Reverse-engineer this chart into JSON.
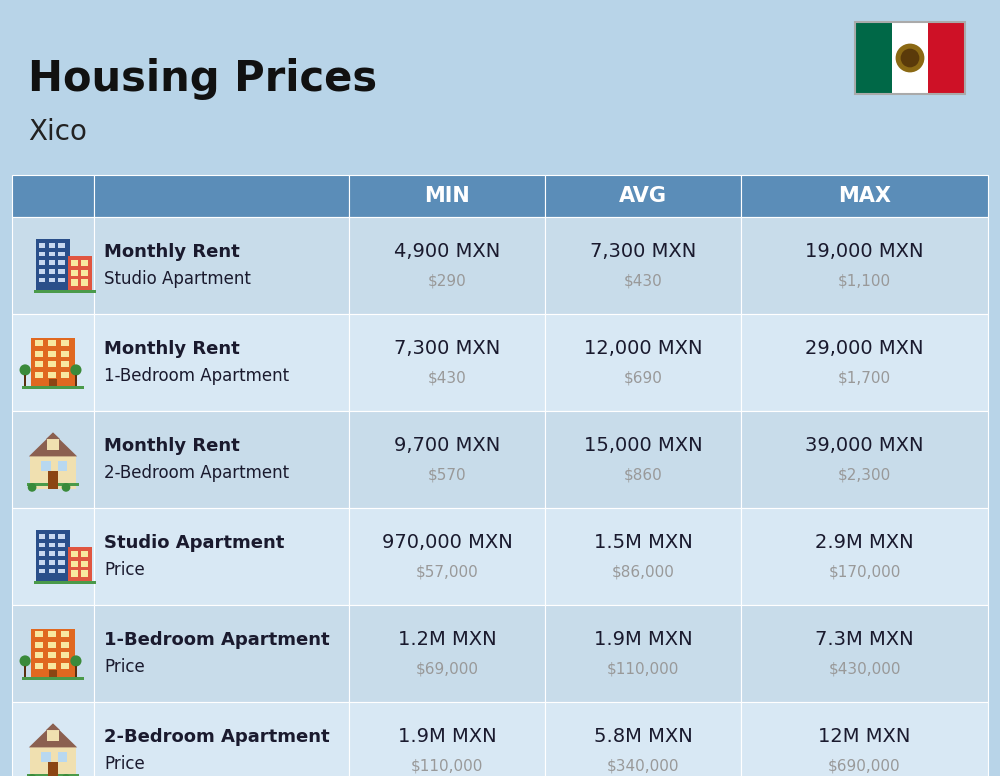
{
  "title": "Housing Prices",
  "subtitle": "Xico",
  "background_color": "#b8d4e8",
  "header_color": "#5b8db8",
  "header_text_color": "#ffffff",
  "row_colors": [
    "#c8dcea",
    "#d8e8f4"
  ],
  "col_headers": [
    "MIN",
    "AVG",
    "MAX"
  ],
  "rows": [
    {
      "label_bold": "Monthly Rent",
      "label_sub": "Studio Apartment",
      "icon_type": "studio_blue",
      "min_main": "4,900 MXN",
      "min_sub": "$290",
      "avg_main": "7,300 MXN",
      "avg_sub": "$430",
      "max_main": "19,000 MXN",
      "max_sub": "$1,100"
    },
    {
      "label_bold": "Monthly Rent",
      "label_sub": "1-Bedroom Apartment",
      "icon_type": "onebr_orange",
      "min_main": "7,300 MXN",
      "min_sub": "$430",
      "avg_main": "12,000 MXN",
      "avg_sub": "$690",
      "max_main": "29,000 MXN",
      "max_sub": "$1,700"
    },
    {
      "label_bold": "Monthly Rent",
      "label_sub": "2-Bedroom Apartment",
      "icon_type": "twobr_tan",
      "min_main": "9,700 MXN",
      "min_sub": "$570",
      "avg_main": "15,000 MXN",
      "avg_sub": "$860",
      "max_main": "39,000 MXN",
      "max_sub": "$2,300"
    },
    {
      "label_bold": "Studio Apartment",
      "label_sub": "Price",
      "icon_type": "studio_blue",
      "min_main": "970,000 MXN",
      "min_sub": "$57,000",
      "avg_main": "1.5M MXN",
      "avg_sub": "$86,000",
      "max_main": "2.9M MXN",
      "max_sub": "$170,000"
    },
    {
      "label_bold": "1-Bedroom Apartment",
      "label_sub": "Price",
      "icon_type": "onebr_orange",
      "min_main": "1.2M MXN",
      "min_sub": "$69,000",
      "avg_main": "1.9M MXN",
      "avg_sub": "$110,000",
      "max_main": "7.3M MXN",
      "max_sub": "$430,000"
    },
    {
      "label_bold": "2-Bedroom Apartment",
      "label_sub": "Price",
      "icon_type": "twobr_tan",
      "min_main": "1.9M MXN",
      "min_sub": "$110,000",
      "avg_main": "5.8M MXN",
      "avg_sub": "$340,000",
      "max_main": "12M MXN",
      "max_sub": "$690,000"
    }
  ],
  "cell_text_color": "#1a1a2e",
  "cell_sub_color": "#999999"
}
